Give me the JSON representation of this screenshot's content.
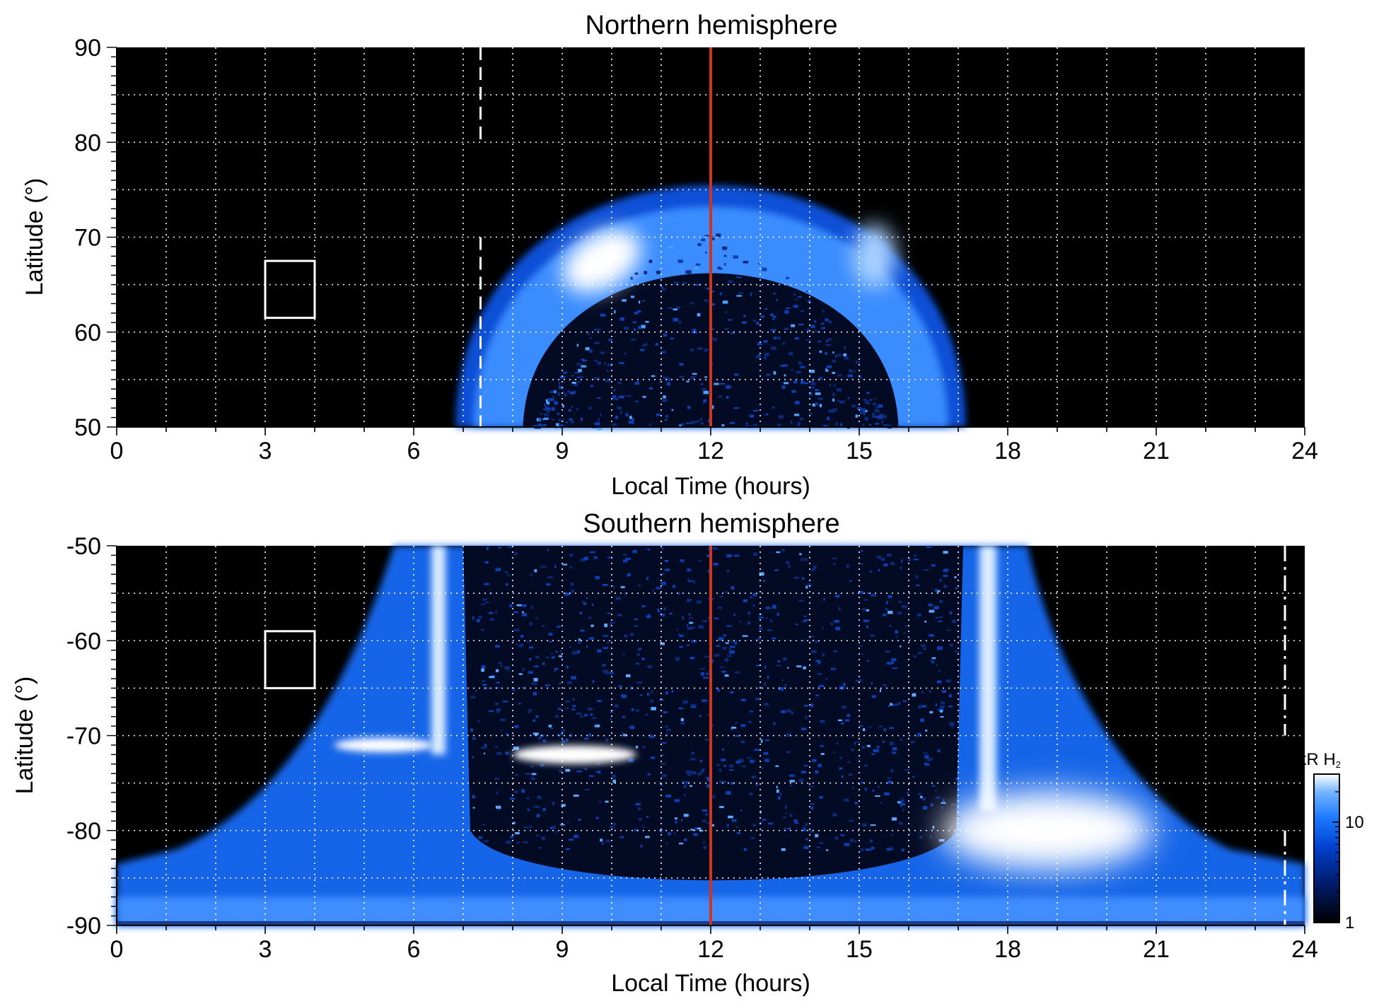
{
  "chart_data": [
    {
      "type": "heatmap",
      "title": "Northern hemisphere",
      "xlabel": "Local Time (hours)",
      "ylabel": "Latitude (°)",
      "xlim": [
        0,
        24
      ],
      "ylim": [
        50,
        90
      ],
      "xticks": [
        "0",
        "3",
        "6",
        "9",
        "12",
        "15",
        "18",
        "21",
        "24"
      ],
      "yticks": [
        "50",
        "60",
        "70",
        "80",
        "90"
      ],
      "grid": "dotted, 1 h by 5°",
      "background": "#000000",
      "noon_line": {
        "x": 12,
        "color": "#d0341c"
      },
      "dashed_line_x": 7.35,
      "box": {
        "x": [
          3,
          4
        ],
        "y": [
          61.5,
          67.5
        ]
      },
      "aurora_oval": {
        "local_time_range": [
          7.0,
          17.3
        ],
        "poleward_edge_lat_at_noon": 79.5,
        "equatorward_edge_lat_at_noon": 69.0,
        "brightest_patch": {
          "local_time": 9.8,
          "lat": 67.5
        },
        "secondary_patch": {
          "local_time": 15.3,
          "lat": 68.0
        }
      }
    },
    {
      "type": "heatmap",
      "title": "Southern hemisphere",
      "xlabel": "Local Time (hours)",
      "ylabel": "Latitude (°)",
      "xlim": [
        0,
        24
      ],
      "ylim": [
        -90,
        -50
      ],
      "xticks": [
        "0",
        "3",
        "6",
        "9",
        "12",
        "15",
        "18",
        "21",
        "24"
      ],
      "yticks": [
        "-90",
        "-80",
        "-70",
        "-60",
        "-50"
      ],
      "grid": "dotted, 1 h by 5°",
      "background": "#000000",
      "noon_line": {
        "x": 12,
        "color": "#d0341c"
      },
      "dashed_line_x": 23.6,
      "box": {
        "x": [
          3,
          4
        ],
        "y": [
          -65,
          -59
        ]
      },
      "emission": {
        "dayside_region_local_time": [
          7.0,
          17.1
        ],
        "bright_band_dawn": {
          "local_time": 6.5,
          "lat": [
            -50,
            -72
          ]
        },
        "bright_band_dusk": {
          "local_time": 17.6,
          "lat": [
            -50,
            -78
          ]
        },
        "bright_arc": {
          "local_time": [
            8.0,
            10.5
          ],
          "lat": -72
        },
        "brightest_patch": {
          "local_time": 18.8,
          "lat": -80
        }
      }
    }
  ],
  "colorbar": {
    "label": "kR H",
    "label_subscript": "2",
    "scale": "log",
    "range": [
      1,
      30
    ],
    "ticks": [
      "1",
      "10"
    ],
    "colors": [
      "#000000",
      "#001a66",
      "#0040cc",
      "#1a78ff",
      "#73b5ff",
      "#ffffff"
    ]
  }
}
